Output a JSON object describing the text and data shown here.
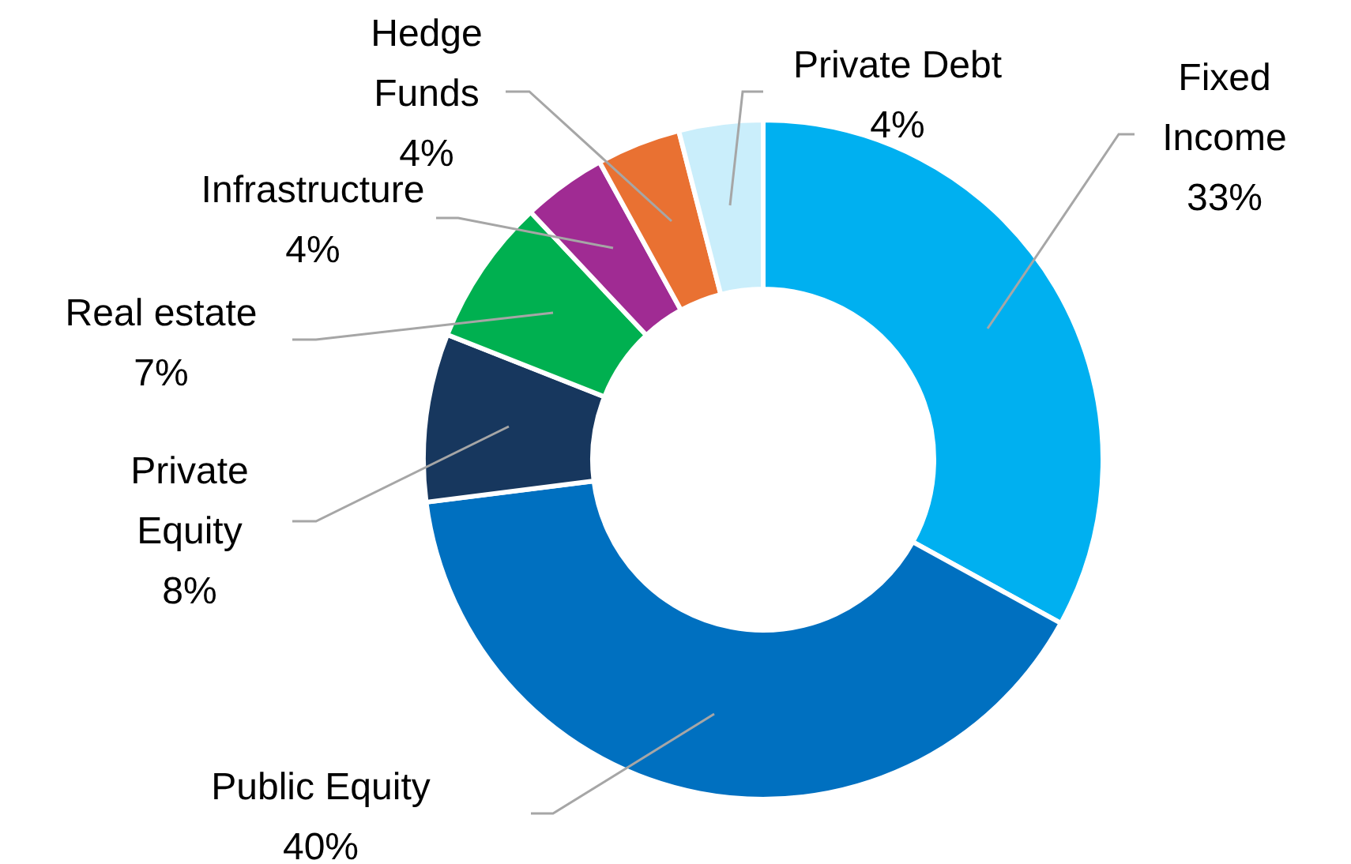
{
  "chart_data": {
    "type": "donut",
    "categories": [
      "Fixed Income",
      "Public Equity",
      "Private Equity",
      "Real estate",
      "Infrastructure",
      "Hedge Funds",
      "Private Debt"
    ],
    "values": [
      33,
      40,
      8,
      7,
      4,
      4,
      4
    ],
    "colors": [
      "#00b0f0",
      "#0070c0",
      "#17375e",
      "#00b050",
      "#a02b93",
      "#e97132",
      "#caeefb"
    ],
    "value_labels": [
      "33%",
      "40%",
      "8%",
      "7%",
      "4%",
      "4%",
      "4%"
    ],
    "legend": false
  }
}
